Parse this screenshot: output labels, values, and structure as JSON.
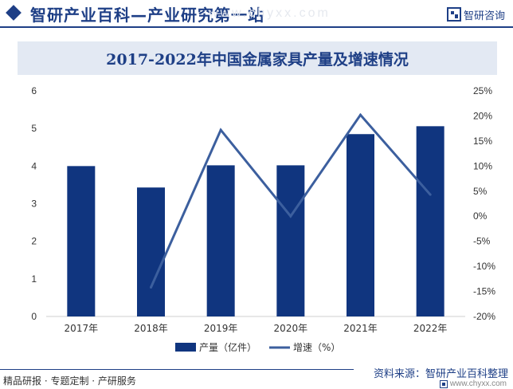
{
  "header": {
    "title": "智研产业百科—产业研究第一站",
    "watermark": "www.chyxx.com",
    "logo_text": "智研咨询",
    "logo_icon": "zhiyan-logo-icon"
  },
  "colors": {
    "brand": "#1e3f86",
    "bar": "#10357f",
    "line": "#3c5f9e",
    "title_bg": "#e3e9f3"
  },
  "chart_data": {
    "type": "bar",
    "title": "2017-2022年中国金属家具产量及增速情况",
    "categories": [
      "2017年",
      "2018年",
      "2019年",
      "2020年",
      "2021年",
      "2022年"
    ],
    "series": [
      {
        "name": "产量（亿件）",
        "type": "bar",
        "axis": "left",
        "values": [
          4.0,
          3.43,
          4.02,
          4.02,
          4.85,
          5.06
        ]
      },
      {
        "name": "增速（%）",
        "type": "line",
        "axis": "right",
        "values": [
          null,
          -14.2,
          17.2,
          0.0,
          20.2,
          4.3
        ]
      }
    ],
    "ylim_left": [
      0,
      6
    ],
    "yticks_left": [
      "0",
      "1",
      "2",
      "3",
      "4",
      "5",
      "6"
    ],
    "ylim_right": [
      -20,
      25
    ],
    "yticks_right": [
      "-20%",
      "-15%",
      "-10%",
      "-5%",
      "0%",
      "5%",
      "10%",
      "15%",
      "20%",
      "25%"
    ],
    "grid": false,
    "legend_position": "bottom"
  },
  "footer": {
    "left": "精品研报 · 专题定制 · 产研服务",
    "source": "资料来源：智研产业百科整理",
    "url": "www.chyxx.com"
  }
}
